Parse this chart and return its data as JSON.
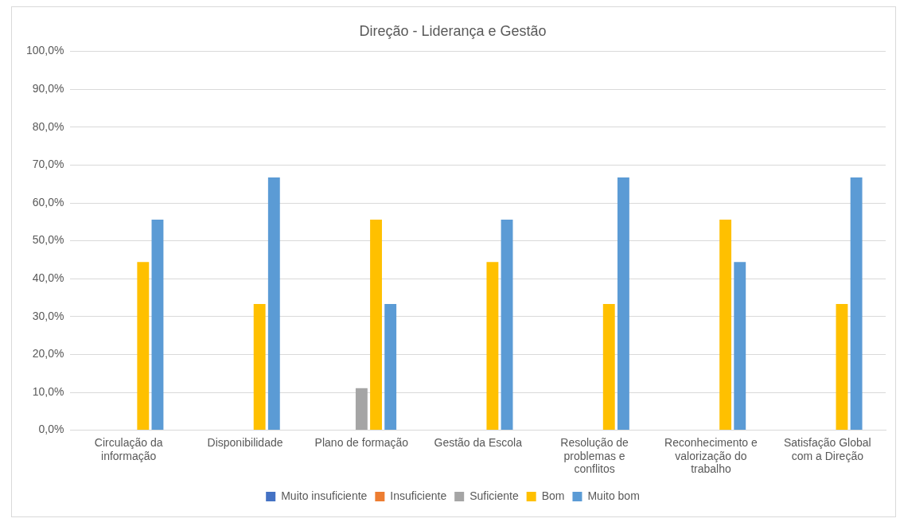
{
  "chart_data": {
    "type": "bar",
    "title": "Direção - Liderança e Gestão",
    "categories": [
      "Circulação da informação",
      "Disponibilidade",
      "Plano de formação",
      "Gestão da Escola",
      "Resolução de problemas e conflitos",
      "Reconhecimento e valorização do trabalho",
      "Satisfação Global com a Direção"
    ],
    "series": [
      {
        "name": "Muito insuficiente",
        "color": "#4472c4",
        "values": [
          0,
          0,
          0,
          0,
          0,
          0,
          0
        ]
      },
      {
        "name": "Insuficiente",
        "color": "#ed7d31",
        "values": [
          0,
          0,
          0,
          0,
          0,
          0,
          0
        ]
      },
      {
        "name": "Suficiente",
        "color": "#a5a5a5",
        "values": [
          0,
          0,
          11.1,
          0,
          0,
          0,
          0
        ]
      },
      {
        "name": "Bom",
        "color": "#ffc000",
        "values": [
          44.4,
          33.3,
          55.6,
          44.4,
          33.3,
          55.6,
          33.3
        ]
      },
      {
        "name": "Muito bom",
        "color": "#5b9bd5",
        "values": [
          55.6,
          66.7,
          33.3,
          55.6,
          66.7,
          44.4,
          66.7
        ]
      }
    ],
    "ylim": [
      0,
      100
    ],
    "yticks": [
      {
        "value": 0,
        "label": "0,0%"
      },
      {
        "value": 10,
        "label": "10,0%"
      },
      {
        "value": 20,
        "label": "20,0%"
      },
      {
        "value": 30,
        "label": "30,0%"
      },
      {
        "value": 40,
        "label": "40,0%"
      },
      {
        "value": 50,
        "label": "50,0%"
      },
      {
        "value": 60,
        "label": "60,0%"
      },
      {
        "value": 70,
        "label": "70,0%"
      },
      {
        "value": 80,
        "label": "80,0%"
      },
      {
        "value": 90,
        "label": "90,0%"
      },
      {
        "value": 100,
        "label": "100,0%"
      }
    ],
    "grid": "y",
    "legend": "bottom"
  }
}
